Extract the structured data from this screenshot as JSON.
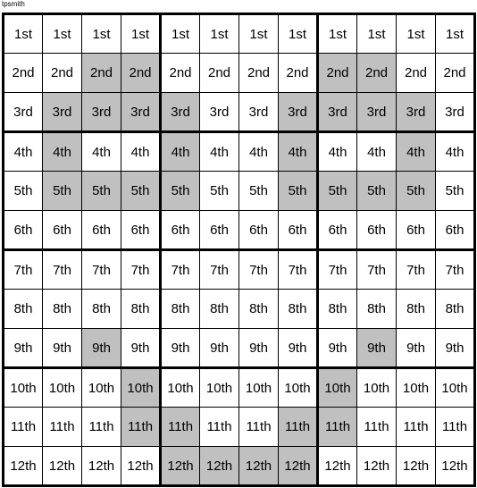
{
  "attribution": "tpsmith",
  "gridStyle": {
    "cols": 12,
    "rows": 12,
    "blockCols": 4,
    "blockRows": 3,
    "cellWidthPx": 44,
    "cellHeightPx": 44,
    "thinBorderPx": 1,
    "thickBorderPx": 3,
    "borderColor": "#000000",
    "shadedColor": "#c0c0c0",
    "unshadedColor": "#ffffff",
    "fontSizePx": 15,
    "fontFamily": "Arial, sans-serif",
    "textColor": "#000000"
  },
  "rowLabels": [
    "1st",
    "2nd",
    "3rd",
    "4th",
    "5th",
    "6th",
    "7th",
    "8th",
    "9th",
    "10th",
    "11th",
    "12th"
  ],
  "shaded": [
    [
      0,
      0,
      0,
      0,
      0,
      0,
      0,
      0,
      0,
      0,
      0,
      0
    ],
    [
      0,
      0,
      1,
      1,
      0,
      0,
      0,
      0,
      1,
      1,
      0,
      0
    ],
    [
      0,
      1,
      1,
      1,
      1,
      0,
      0,
      1,
      1,
      1,
      1,
      0
    ],
    [
      0,
      1,
      0,
      0,
      1,
      0,
      0,
      1,
      0,
      0,
      1,
      0
    ],
    [
      0,
      1,
      1,
      1,
      1,
      0,
      0,
      1,
      1,
      1,
      1,
      0
    ],
    [
      0,
      0,
      0,
      0,
      0,
      0,
      0,
      0,
      0,
      0,
      0,
      0
    ],
    [
      0,
      0,
      0,
      0,
      0,
      0,
      0,
      0,
      0,
      0,
      0,
      0
    ],
    [
      0,
      0,
      0,
      0,
      0,
      0,
      0,
      0,
      0,
      0,
      0,
      0
    ],
    [
      0,
      0,
      1,
      0,
      0,
      0,
      0,
      0,
      0,
      1,
      0,
      0
    ],
    [
      0,
      0,
      0,
      1,
      0,
      0,
      0,
      0,
      1,
      0,
      0,
      0
    ],
    [
      0,
      0,
      0,
      1,
      1,
      0,
      0,
      1,
      1,
      0,
      0,
      0
    ],
    [
      0,
      0,
      0,
      0,
      1,
      1,
      1,
      1,
      0,
      0,
      0,
      0
    ]
  ]
}
